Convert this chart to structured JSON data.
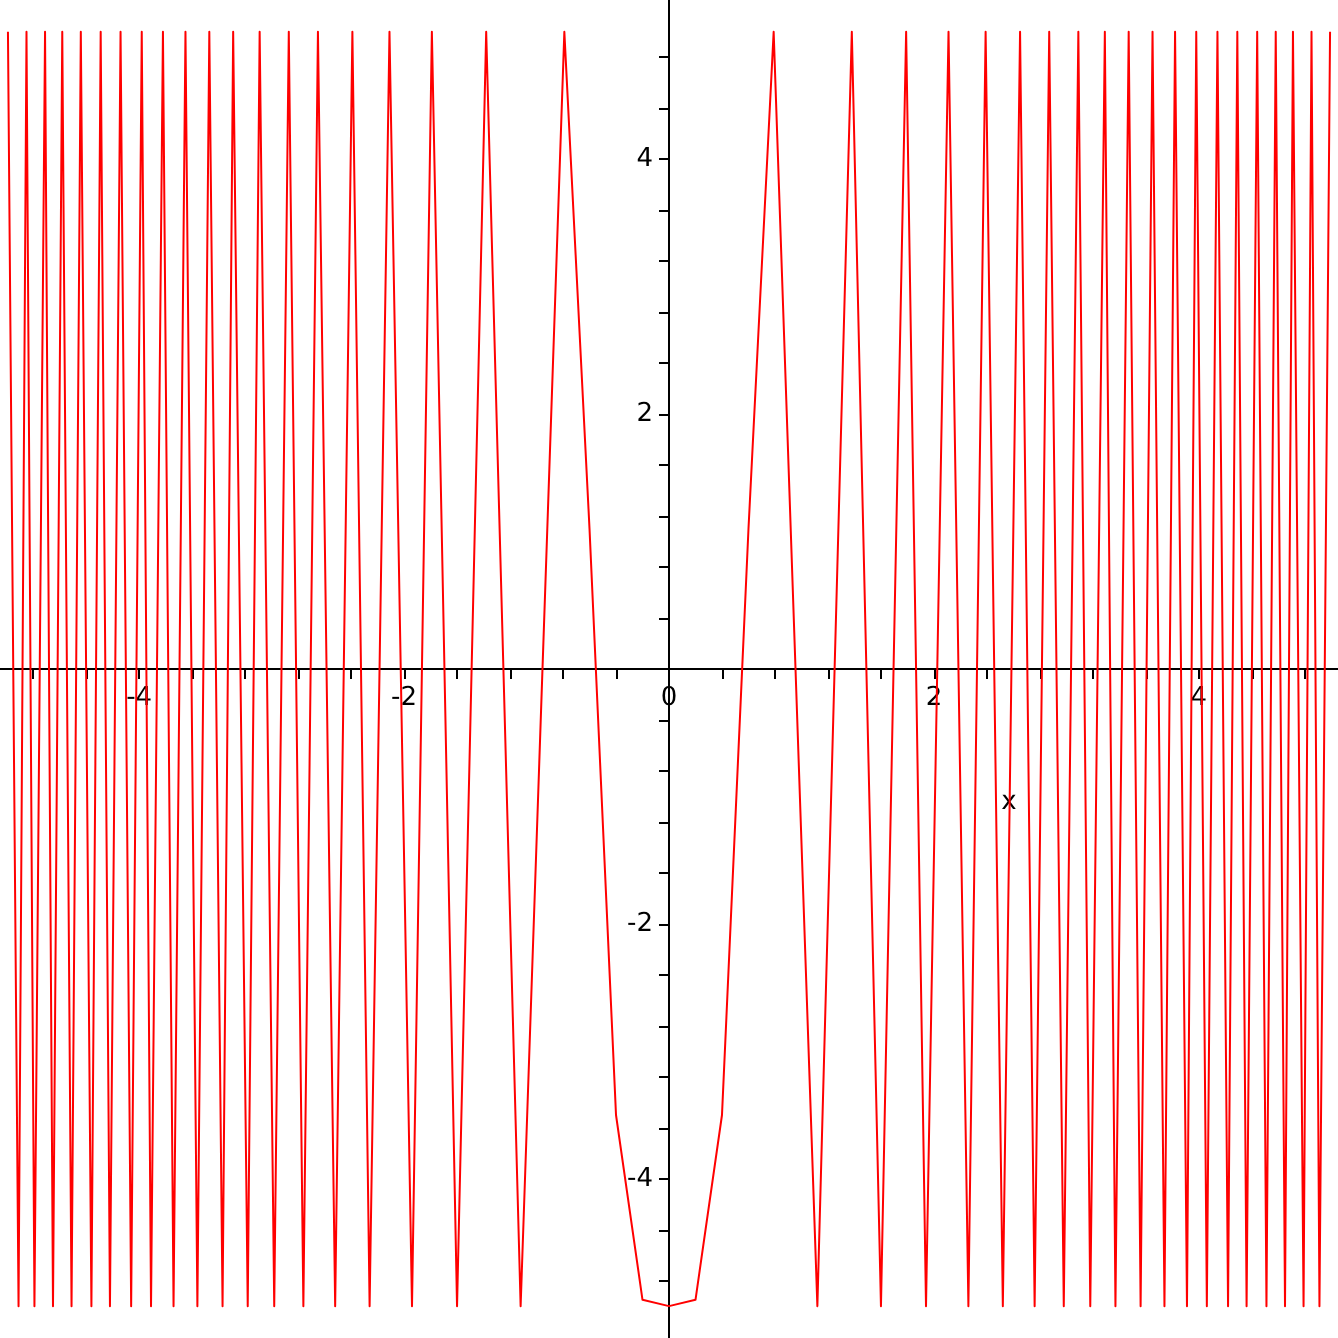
{
  "chart_data": {
    "type": "line",
    "xlabel": "x",
    "x": [
      -4.99,
      -4.91,
      -4.85,
      -4.79,
      -4.71,
      -4.65,
      -4.58,
      -4.51,
      -4.44,
      -4.36,
      -4.29,
      -4.22,
      -4.14,
      -4.06,
      -3.98,
      -3.91,
      -3.82,
      -3.74,
      -3.65,
      -3.56,
      -3.47,
      -3.37,
      -3.29,
      -3.18,
      -3.09,
      -2.98,
      -2.87,
      -2.76,
      -2.65,
      -2.52,
      -2.39,
      -2.26,
      -2.11,
      -1.94,
      -1.79,
      -1.6,
      -1.38,
      -1.12,
      -0.79,
      -0.6,
      -0.4,
      -0.2,
      0,
      0.2,
      0.4,
      0.6,
      0.79,
      1.12,
      1.38,
      1.6,
      1.79,
      1.94,
      2.11,
      2.26,
      2.39,
      2.52,
      2.65,
      2.76,
      2.87,
      2.98,
      3.09,
      3.18,
      3.29,
      3.37,
      3.47,
      3.56,
      3.65,
      3.74,
      3.82,
      3.91,
      3.98,
      4.06,
      4.14,
      4.22,
      4.29,
      4.36,
      4.44,
      4.51,
      4.58,
      4.65,
      4.71,
      4.79,
      4.85,
      4.91,
      4.99
    ],
    "series": [
      {
        "color": "#ff0000",
        "values": [
          5,
          -5,
          5,
          -5,
          5,
          -5,
          5,
          -5,
          5,
          -5,
          5,
          -5,
          5,
          -5,
          5,
          -5,
          5,
          -5,
          5,
          -5,
          5,
          -5,
          5,
          -5,
          5,
          -5,
          5,
          -5,
          5,
          -5,
          5,
          -5,
          5,
          -5,
          5,
          -5,
          5,
          -5,
          5,
          1.1,
          -3.5,
          -4.95,
          -5,
          -4.95,
          -3.5,
          1.1,
          5,
          -5,
          5,
          -5,
          5,
          -5,
          5,
          -5,
          5,
          -5,
          5,
          -5,
          5,
          -5,
          5,
          -5,
          5,
          -5,
          5,
          -5,
          5,
          -5,
          5,
          -5,
          5,
          -5,
          5,
          -5,
          5,
          -5,
          5,
          -5,
          5,
          -5,
          5,
          -5,
          5,
          -5,
          5
        ]
      }
    ],
    "xlim": [
      -5.05,
      5.05
    ],
    "ylim": [
      -5.25,
      5.25
    ],
    "xticks": [
      {
        "value": -4.8,
        "label": null
      },
      {
        "value": -4.4,
        "label": null
      },
      -4,
      {
        "value": -3.6,
        "label": null
      },
      {
        "value": -3.2,
        "label": null
      },
      {
        "value": -2.8,
        "label": null
      },
      {
        "value": -2.4,
        "label": null
      },
      -2,
      {
        "value": -1.6,
        "label": null
      },
      {
        "value": -1.2,
        "label": null
      },
      {
        "value": -0.8,
        "label": null
      },
      {
        "value": -0.4,
        "label": null
      },
      0,
      {
        "value": 0.4,
        "label": null
      },
      {
        "value": 0.8,
        "label": null
      },
      {
        "value": 1.2,
        "label": null
      },
      {
        "value": 1.6,
        "label": null
      },
      2,
      {
        "value": 2.4,
        "label": null
      },
      {
        "value": 2.8,
        "label": null
      },
      {
        "value": 3.2,
        "label": null
      },
      {
        "value": 3.6,
        "label": null
      },
      4,
      {
        "value": 4.4,
        "label": null
      },
      {
        "value": 4.8,
        "label": null
      }
    ],
    "yticks": [
      {
        "value": -4.8,
        "label": null
      },
      {
        "value": -4.4,
        "label": null
      },
      -4,
      {
        "value": -3.6,
        "label": null
      },
      {
        "value": -3.2,
        "label": null
      },
      {
        "value": -2.8,
        "label": null
      },
      {
        "value": -2.4,
        "label": null
      },
      -2,
      {
        "value": -1.6,
        "label": null
      },
      {
        "value": -1.2,
        "label": null
      },
      {
        "value": -0.8,
        "label": null
      },
      {
        "value": -0.4,
        "label": null
      },
      {
        "value": 0.4,
        "label": null
      },
      {
        "value": 0.8,
        "label": null
      },
      {
        "value": 1.2,
        "label": null
      },
      {
        "value": 1.6,
        "label": null
      },
      2,
      {
        "value": 2.4,
        "label": null
      },
      {
        "value": 2.8,
        "label": null
      },
      {
        "value": 3.2,
        "label": null
      },
      {
        "value": 3.6,
        "label": null
      },
      4,
      {
        "value": 4.4,
        "label": null
      },
      {
        "value": 4.8,
        "label": null
      }
    ],
    "grid": false
  }
}
